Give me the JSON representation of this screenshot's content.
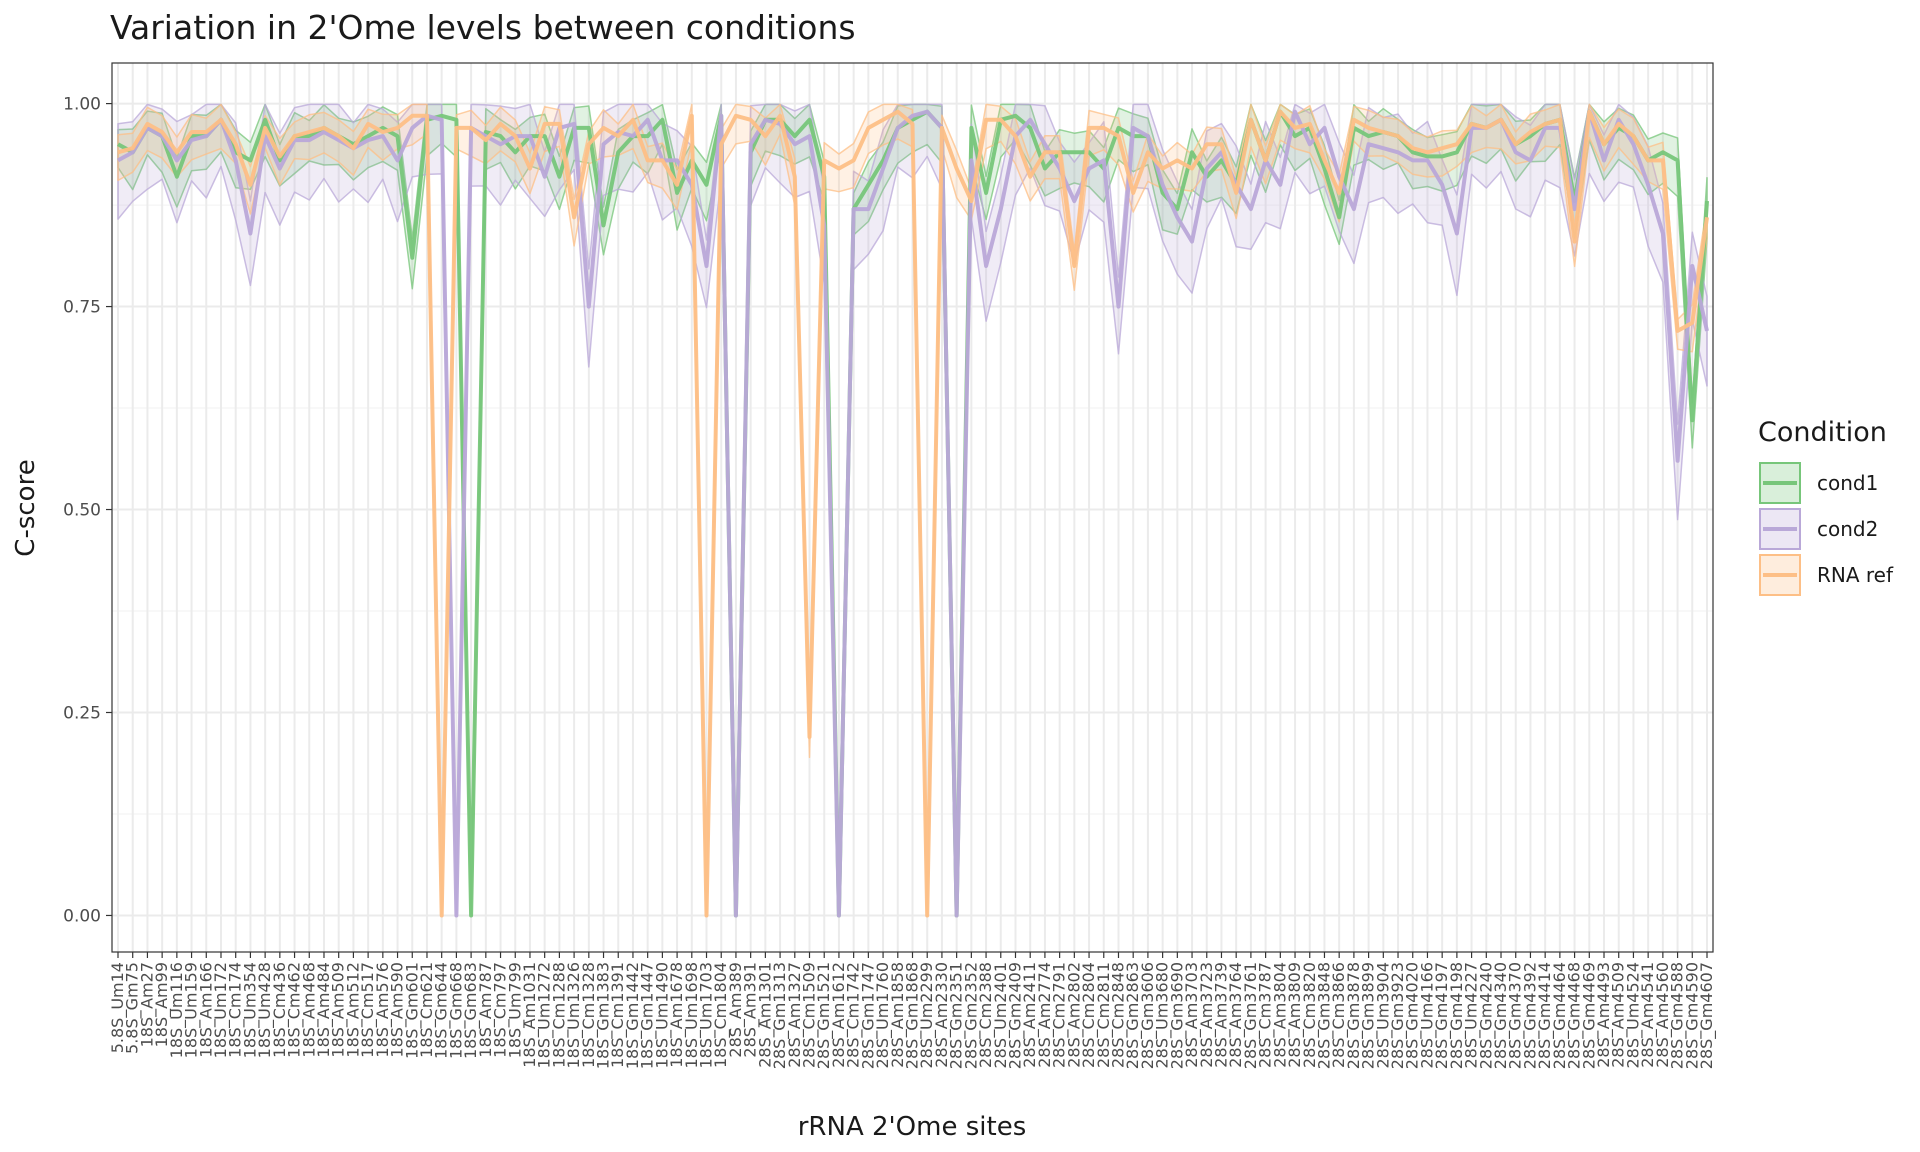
{
  "chart_data": {
    "type": "line",
    "title": "Variation in 2'Ome levels between conditions",
    "xlabel": "rRNA 2'Ome sites",
    "ylabel": "C-score",
    "ylim": [
      -0.045,
      1.05
    ],
    "yticks": [
      0.0,
      0.25,
      0.5,
      0.75,
      1.0
    ],
    "ytick_labels": [
      "0.00",
      "0.25",
      "0.50",
      "0.75",
      "1.00"
    ],
    "grid": true,
    "legend": {
      "title": "Condition",
      "position": "right"
    },
    "categories": [
      "5.8S_Um14",
      "5.8S_Gm75",
      "18S_Am27",
      "18S_Am99",
      "18S_Um116",
      "18S_Um159",
      "18S_Am166",
      "18S_Um172",
      "18S_Cm174",
      "18S_Um354",
      "18S_Um428",
      "18S_Cm436",
      "18S_Cm462",
      "18S_Am468",
      "18S_Am484",
      "18S_Am509",
      "18S_Am512",
      "18S_Cm517",
      "18S_Am576",
      "18S_Am590",
      "18S_Gm601",
      "18S_Cm621",
      "18S_Gm644",
      "18S_Gm668",
      "18S_Gm683",
      "18S_Am787",
      "18S_Cm797",
      "18S_Um799",
      "18S_Am1031",
      "18S_Um1272",
      "18S_Cm1288",
      "18S_Um1326",
      "18S_Cm1328",
      "18S_Gm1383",
      "18S_Cm1391",
      "18S_Gm1442",
      "18S_Gm1447",
      "18S_Um1490",
      "18S_Am1678",
      "18S_Um1698",
      "18S_Um1703",
      "18S_Cm1804",
      "28S_Am389",
      "28S_Am391",
      "28S_Am1301",
      "28S_Gm1313",
      "28S_Am1327",
      "28S_Cm1509",
      "28S_Gm1521",
      "28S_Am1612",
      "28S_Cm1742",
      "28S_Gm1747",
      "28S_Um1760",
      "28S_Am1858",
      "28S_Gm1868",
      "28S_Um2299",
      "28S_Am2330",
      "28S_Gm2351",
      "28S_Gm2352",
      "28S_Cm2388",
      "28S_Um2401",
      "28S_Gm2409",
      "28S_Am2411",
      "28S_Am2774",
      "28S_Cm2791",
      "28S_Am2802",
      "28S_Cm2804",
      "28S_Cm2811",
      "28S_Cm2848",
      "28S_Gm2863",
      "28S_Gm3606",
      "28S_Um3680",
      "28S_Gm3690",
      "28S_Am3703",
      "28S_Am3723",
      "28S_Am3739",
      "28S_Am3764",
      "28S_Gm3761",
      "28S_Cm3787",
      "28S_Am3804",
      "28S_Am3809",
      "28S_Cm3820",
      "28S_Gm3848",
      "28S_Cm3866",
      "28S_Gm3878",
      "28S_Gm3899",
      "28S_Um3904",
      "28S_Gm3923",
      "28S_Gm4020",
      "28S_Um4166",
      "28S_Gm4197",
      "28S_Gm4198",
      "28S_Um4227",
      "28S_Gm4240",
      "28S_Gm4340",
      "28S_Gm4370",
      "28S_Gm4392",
      "28S_Gm4414",
      "28S_Gm4464",
      "28S_Gm4468",
      "28S_Gm4469",
      "28S_Am4493",
      "28S_Am4509",
      "28S_Um4524",
      "28S_Am4541",
      "28S_Am4560",
      "28S_Gm4588",
      "28S_Gm4590",
      "28S_Gm4607"
    ],
    "series": [
      {
        "name": "cond1",
        "color": "#77c67a",
        "values": [
          0.95,
          0.94,
          0.97,
          0.96,
          0.91,
          0.96,
          0.96,
          0.98,
          0.94,
          0.93,
          0.98,
          0.93,
          0.96,
          0.96,
          0.97,
          0.96,
          0.95,
          0.96,
          0.97,
          0.96,
          0.81,
          0.98,
          0.985,
          0.98,
          0.0,
          0.965,
          0.96,
          0.94,
          0.96,
          0.96,
          0.91,
          0.97,
          0.97,
          0.85,
          0.94,
          0.96,
          0.96,
          0.98,
          0.89,
          0.93,
          0.9,
          0.985,
          0.0,
          0.94,
          0.98,
          0.98,
          0.96,
          0.98,
          0.91,
          0.0,
          0.87,
          0.9,
          0.93,
          0.97,
          0.98,
          0.99,
          0.97,
          0.0,
          0.97,
          0.89,
          0.98,
          0.985,
          0.97,
          0.92,
          0.94,
          0.94,
          0.94,
          0.92,
          0.97,
          0.96,
          0.96,
          0.89,
          0.87,
          0.94,
          0.91,
          0.93,
          0.9,
          0.98,
          0.93,
          0.99,
          0.96,
          0.97,
          0.92,
          0.86,
          0.97,
          0.96,
          0.965,
          0.96,
          0.94,
          0.935,
          0.935,
          0.94,
          0.975,
          0.97,
          0.98,
          0.95,
          0.96,
          0.975,
          0.98,
          0.88,
          0.99,
          0.95,
          0.97,
          0.96,
          0.93,
          0.94,
          0.93,
          0.61,
          0.88
        ]
      },
      {
        "name": "cond2",
        "color": "#b9a8d8",
        "values": [
          0.93,
          0.94,
          0.97,
          0.96,
          0.93,
          0.955,
          0.96,
          0.98,
          0.93,
          0.84,
          0.96,
          0.92,
          0.955,
          0.955,
          0.965,
          0.955,
          0.945,
          0.955,
          0.96,
          0.93,
          0.97,
          0.985,
          0.98,
          0.0,
          0.97,
          0.96,
          0.95,
          0.96,
          0.96,
          0.91,
          0.97,
          0.975,
          0.75,
          0.95,
          0.965,
          0.96,
          0.98,
          0.93,
          0.93,
          0.9,
          0.8,
          0.985,
          0.0,
          0.95,
          0.98,
          0.975,
          0.95,
          0.96,
          0.85,
          0.0,
          0.87,
          0.87,
          0.92,
          0.97,
          0.985,
          0.99,
          0.97,
          0.0,
          0.93,
          0.8,
          0.87,
          0.96,
          0.98,
          0.95,
          0.92,
          0.88,
          0.92,
          0.93,
          0.75,
          0.97,
          0.96,
          0.9,
          0.86,
          0.83,
          0.92,
          0.94,
          0.9,
          0.87,
          0.93,
          0.9,
          0.99,
          0.95,
          0.97,
          0.91,
          0.87,
          0.95,
          0.945,
          0.94,
          0.93,
          0.93,
          0.9,
          0.84,
          0.97,
          0.97,
          0.98,
          0.94,
          0.93,
          0.97,
          0.97,
          0.87,
          0.99,
          0.93,
          0.98,
          0.95,
          0.9,
          0.84,
          0.56,
          0.8,
          0.72
        ]
      },
      {
        "name": "RNA ref",
        "color": "#fdbf86",
        "values": [
          0.94,
          0.945,
          0.975,
          0.965,
          0.94,
          0.965,
          0.965,
          0.98,
          0.95,
          0.9,
          0.97,
          0.935,
          0.96,
          0.965,
          0.97,
          0.96,
          0.945,
          0.975,
          0.965,
          0.97,
          0.985,
          0.985,
          0.0,
          0.97,
          0.97,
          0.955,
          0.975,
          0.96,
          0.92,
          0.975,
          0.975,
          0.86,
          0.95,
          0.97,
          0.96,
          0.98,
          0.93,
          0.93,
          0.9,
          0.985,
          0.0,
          0.95,
          0.985,
          0.98,
          0.96,
          0.985,
          0.91,
          0.22,
          0.93,
          0.92,
          0.93,
          0.97,
          0.98,
          0.99,
          0.975,
          0.0,
          0.97,
          0.92,
          0.88,
          0.98,
          0.98,
          0.96,
          0.91,
          0.94,
          0.94,
          0.8,
          0.97,
          0.97,
          0.96,
          0.89,
          0.94,
          0.92,
          0.93,
          0.92,
          0.95,
          0.95,
          0.89,
          0.98,
          0.93,
          0.99,
          0.97,
          0.975,
          0.93,
          0.89,
          0.98,
          0.97,
          0.965,
          0.96,
          0.945,
          0.94,
          0.945,
          0.95,
          0.975,
          0.97,
          0.98,
          0.95,
          0.965,
          0.975,
          0.98,
          0.83,
          0.99,
          0.95,
          0.975,
          0.96,
          0.93,
          0.93,
          0.72,
          0.73,
          0.86
        ]
      }
    ]
  }
}
